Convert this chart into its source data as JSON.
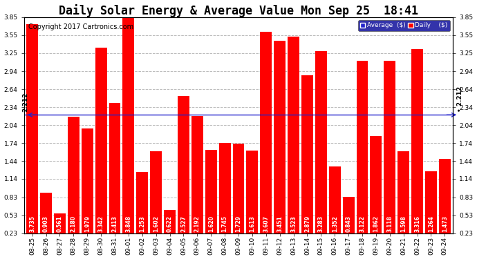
{
  "title": "Daily Solar Energy & Average Value Mon Sep 25  18:41",
  "copyright": "Copyright 2017 Cartronics.com",
  "categories": [
    "08-25",
    "08-26",
    "08-27",
    "08-28",
    "08-29",
    "08-30",
    "08-31",
    "09-01",
    "09-02",
    "09-03",
    "09-04",
    "09-05",
    "09-06",
    "09-07",
    "09-08",
    "09-09",
    "09-10",
    "09-11",
    "09-12",
    "09-13",
    "09-14",
    "09-15",
    "09-16",
    "09-17",
    "09-18",
    "09-19",
    "09-20",
    "09-21",
    "09-22",
    "09-23",
    "09-24"
  ],
  "values": [
    3.735,
    0.903,
    0.561,
    2.18,
    1.979,
    3.342,
    2.413,
    3.848,
    1.253,
    1.602,
    0.622,
    2.527,
    2.192,
    1.62,
    1.745,
    1.729,
    1.613,
    3.607,
    3.451,
    3.523,
    2.879,
    3.283,
    1.352,
    0.843,
    3.122,
    1.862,
    3.118,
    1.598,
    3.316,
    1.264,
    1.473
  ],
  "average": 2.212,
  "bar_color": "#ff0000",
  "average_line_color": "#2222cc",
  "background_color": "#ffffff",
  "plot_bg_color": "#ffffff",
  "grid_color": "#bbbbbb",
  "ylim_min": 0.23,
  "ylim_max": 3.85,
  "yticks": [
    0.23,
    0.53,
    0.83,
    1.14,
    1.44,
    1.74,
    2.04,
    2.34,
    2.64,
    2.94,
    3.25,
    3.55,
    3.85
  ],
  "title_fontsize": 12,
  "copyright_fontsize": 7,
  "bar_label_fontsize": 5.5,
  "tick_fontsize": 6.5,
  "legend_avg_color": "#2222cc",
  "legend_daily_color": "#ff0000",
  "legend_bg_color": "#3333aa"
}
